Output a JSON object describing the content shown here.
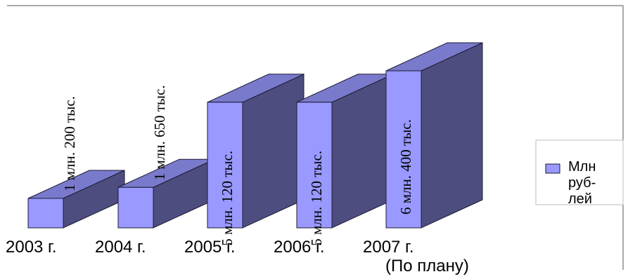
{
  "chart_data": {
    "type": "bar",
    "categories": [
      "2003 г.",
      "2004 г.",
      "2005 г.",
      "2006 г.",
      "2007 г."
    ],
    "category_notes": [
      "",
      "",
      "",
      "",
      "(По плану)"
    ],
    "series": [
      {
        "name": "Млн рублей",
        "legend_lines": [
          "Млн",
          "руб-",
          "лей"
        ],
        "values": [
          1.2,
          1.65,
          5.12,
          5.12,
          6.4
        ]
      }
    ],
    "data_labels": [
      "1 млн. 200 тыс.",
      "1 млн. 650 тыс.",
      "5 млн. 120 тыс.",
      "5 млн. 120 тыс.",
      "6 млн. 400 тыс."
    ],
    "legend_position": "right",
    "colors": {
      "front": "#9999ff",
      "side": "#4d4d80",
      "top": "#7a7acc",
      "outline": "#1a1a33"
    }
  }
}
